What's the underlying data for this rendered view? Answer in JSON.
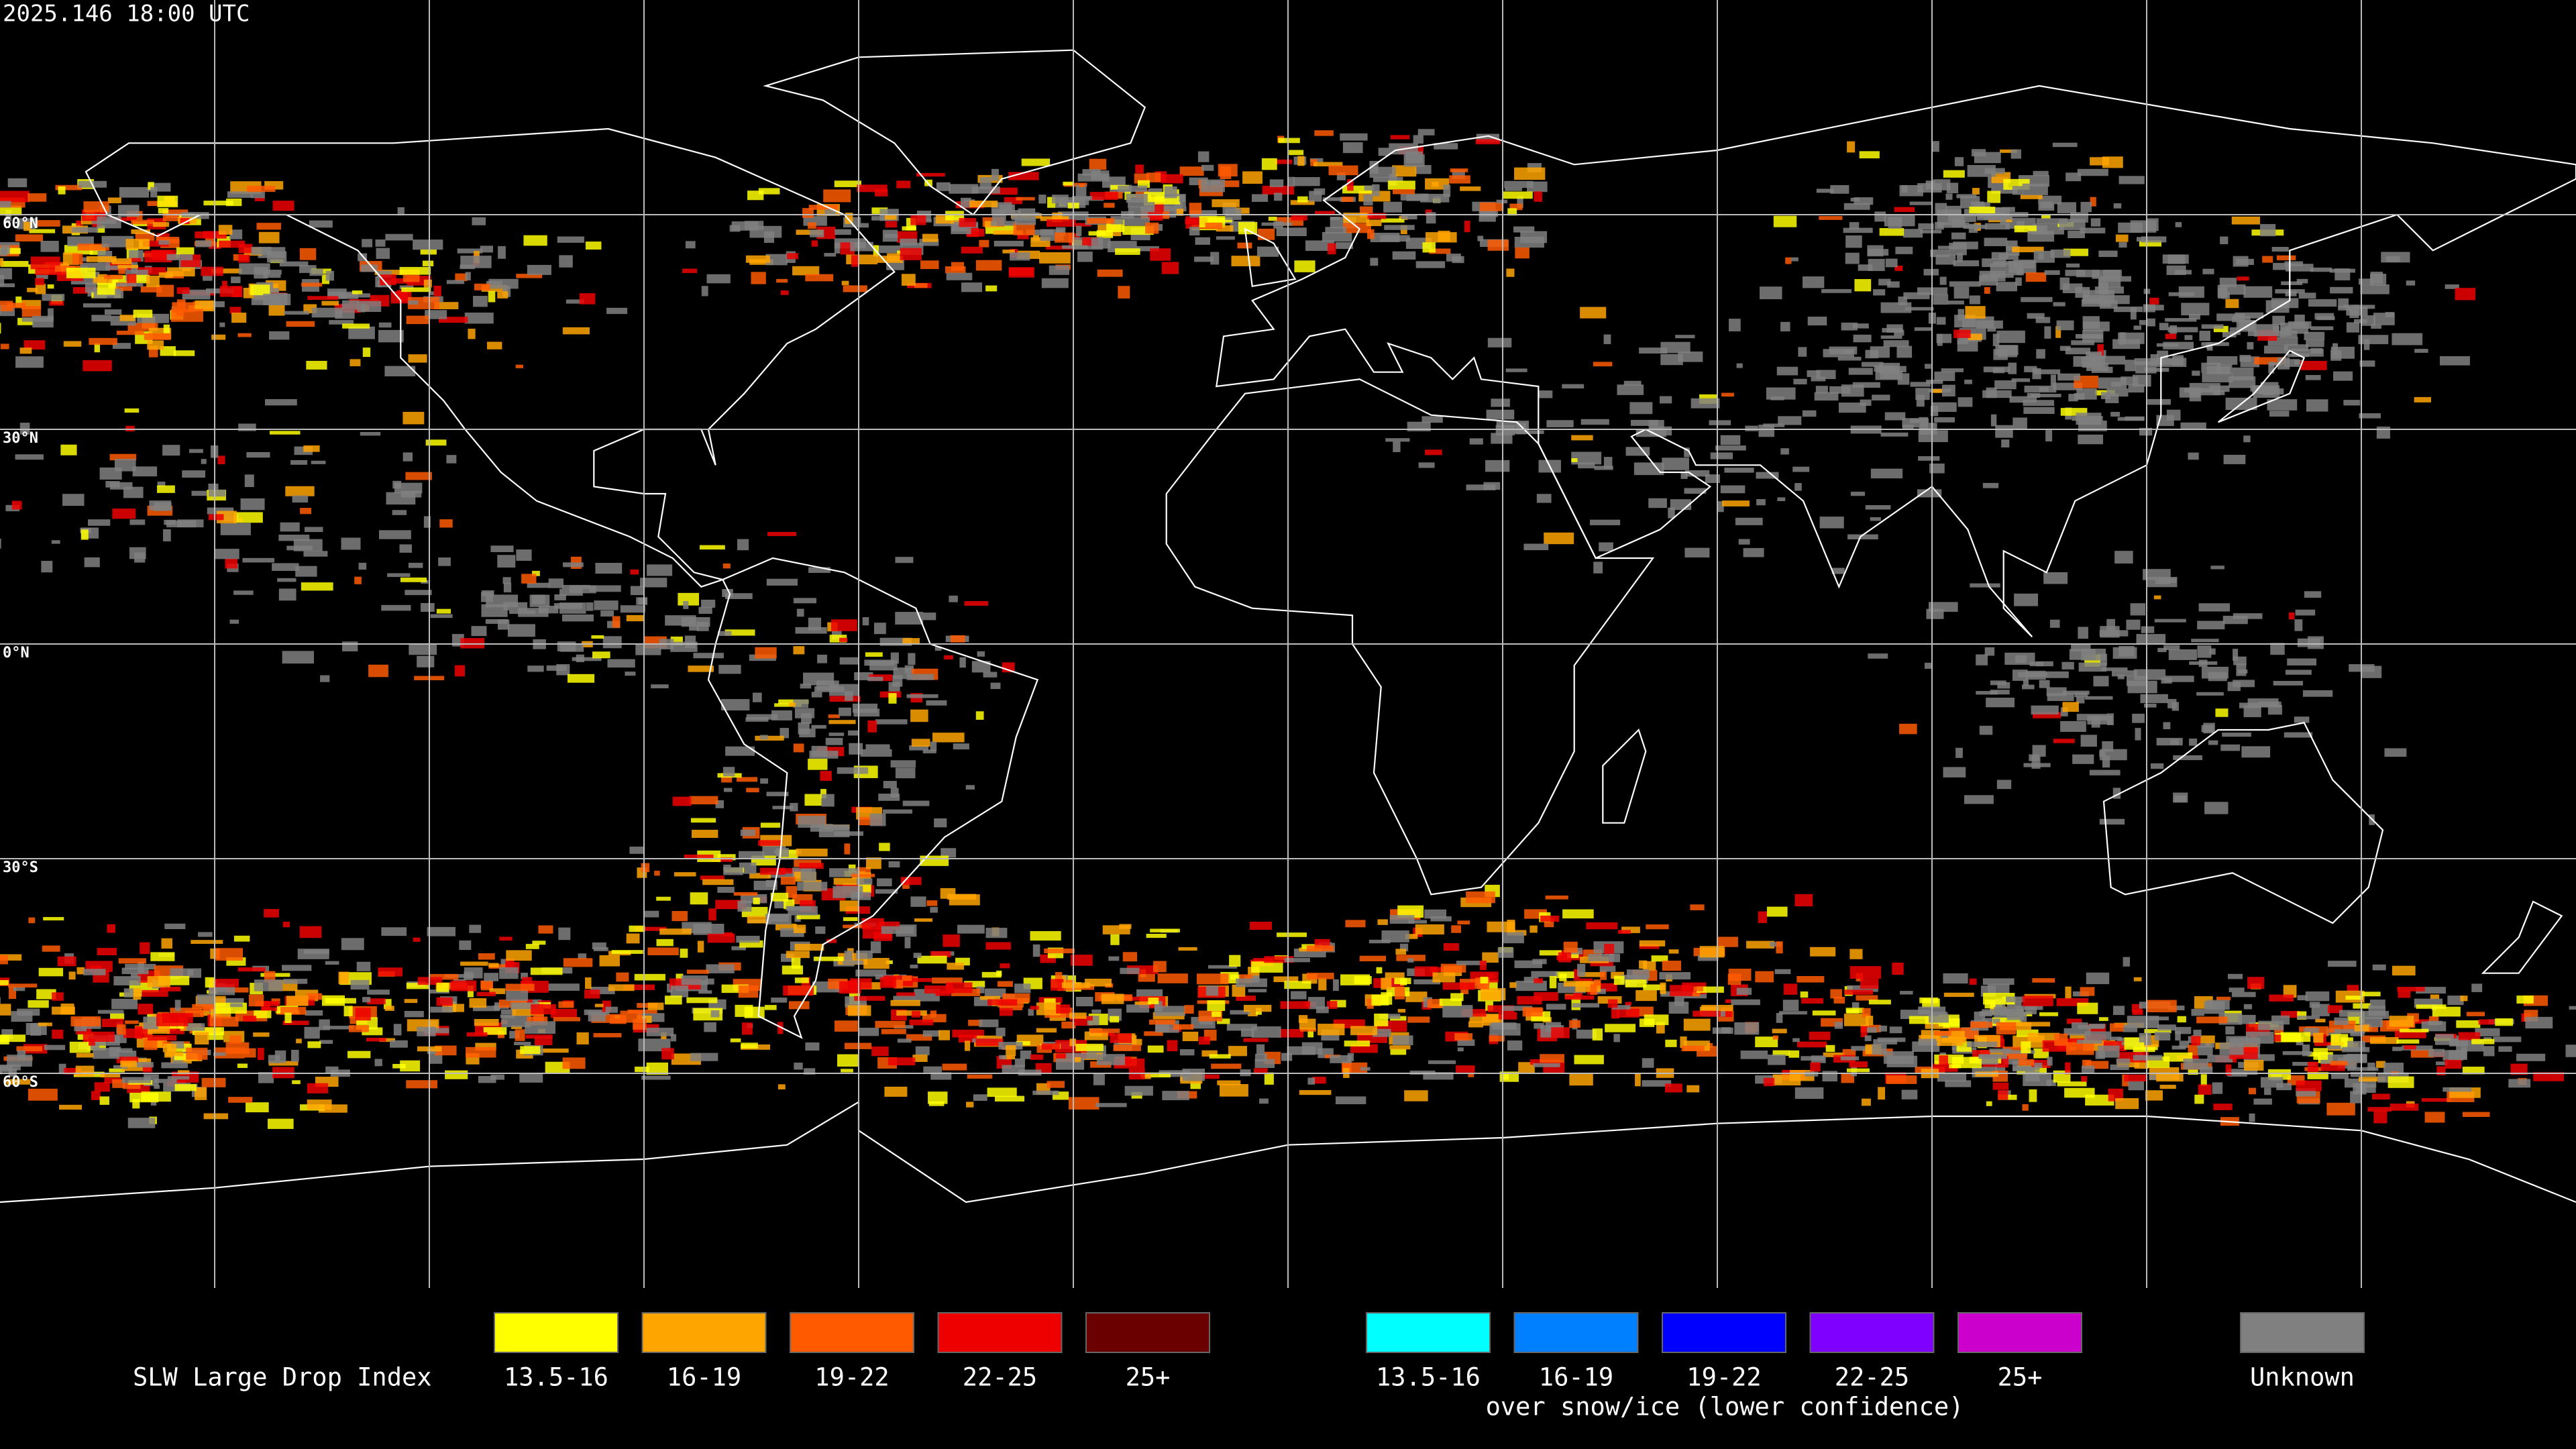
{
  "header": {
    "timestamp": "2025.146 18:00 UTC"
  },
  "map": {
    "lat_labels": [
      "60°N",
      "30°N",
      "0°N",
      "30°S",
      "60°S"
    ]
  },
  "legend": {
    "title": "SLW Large Drop Index",
    "groups": [
      {
        "items": [
          {
            "label": "13.5-16",
            "color": "#ffff00"
          },
          {
            "label": "16-19",
            "color": "#ffa500"
          },
          {
            "label": "19-22",
            "color": "#ff5a00"
          },
          {
            "label": "22-25",
            "color": "#ee0000"
          },
          {
            "label": "25+",
            "color": "#6b0000"
          }
        ]
      },
      {
        "items": [
          {
            "label": "13.5-16",
            "color": "#00ffff"
          },
          {
            "label": "16-19",
            "color": "#0080ff"
          },
          {
            "label": "19-22",
            "color": "#0000ff"
          },
          {
            "label": "22-25",
            "color": "#7f00ff"
          },
          {
            "label": "25+",
            "color": "#cc00cc"
          }
        ],
        "caption": "over snow/ice (lower confidence)"
      }
    ],
    "unknown": {
      "label": "Unknown",
      "color": "#808080"
    }
  }
}
